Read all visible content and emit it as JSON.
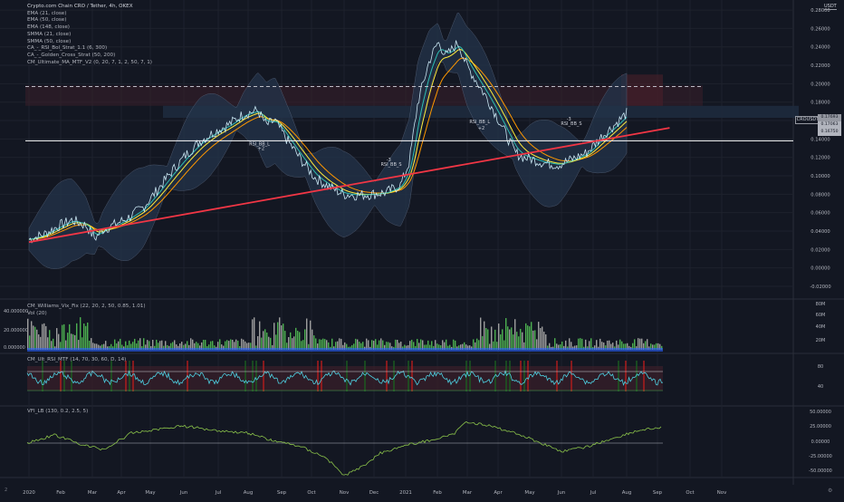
{
  "legend": {
    "title": "Crypto.com Chain CRO / Tether, 4h, OKEX",
    "indicators": [
      "EMA (21, close)",
      "EMA (50, close)",
      "EMA (148, close)",
      "SMMA (21, close)",
      "SMMA (50, close)",
      "CA_-_RSI_Bol_Strat_1.1 (6, 300)",
      "CA_-_Golden_Cross_Strat (50, 200)",
      "CM_Ultimate_MA_MTF_V2 (0, 20, 7, 1, 2, 50, 7, 1)"
    ]
  },
  "corner_label": "USDT",
  "ticker_label": "CROUSDT",
  "price_tags": [
    {
      "value": "0.17693",
      "color": "#9598a1"
    },
    {
      "value": "0.17063",
      "color": "#b2b5be"
    },
    {
      "value": "0.16750",
      "color": "#b2b5be"
    }
  ],
  "corner_number": "2",
  "settings_icon": "gear-icon",
  "colors": {
    "background": "#131722",
    "price": "#c9e6f2",
    "ema_fast": "#2ebfb4",
    "ema_mid": "#ffeb3b",
    "ema_slow": "#ff9800",
    "trendline": "#f23645",
    "bollinger_fill": "#23344a",
    "volume_up": "#4caf50",
    "volume_down": "#9e9e9e",
    "rsi_line": "#4dd0e1",
    "vfi_line": "#8bc34a"
  },
  "chart_data": [
    {
      "type": "line",
      "title": "Crypto.com Chain CRO / Tether, 4h, OKEX",
      "x_labels": [
        "2020",
        "Feb",
        "Mar",
        "Apr",
        "May",
        "Jun",
        "Jul",
        "Aug",
        "Sep",
        "Oct",
        "Nov",
        "Dec",
        "2021",
        "Feb",
        "Mar",
        "Apr",
        "May",
        "Jun",
        "Jul",
        "Aug",
        "Sep",
        "Oct",
        "Nov"
      ],
      "y_ticks": [
        "0.28000",
        "0.26000",
        "0.24000",
        "0.22000",
        "0.20000",
        "0.18000",
        "0.16000",
        "0.14000",
        "0.12000",
        "0.10000",
        "0.08000",
        "0.06000",
        "0.04000",
        "0.02000",
        "0.00000",
        "-0.02000"
      ],
      "ylim": [
        -0.022,
        0.285
      ],
      "series": [
        {
          "points": [
            [
              0,
              0.031
            ],
            [
              0.5,
              0.036
            ],
            [
              1,
              0.045
            ],
            [
              1.5,
              0.052
            ],
            [
              2,
              0.046
            ],
            [
              2.3,
              0.032
            ],
            [
              2.6,
              0.042
            ],
            [
              3,
              0.047
            ],
            [
              3.5,
              0.055
            ],
            [
              4,
              0.066
            ],
            [
              4.5,
              0.085
            ],
            [
              5,
              0.105
            ],
            [
              5.5,
              0.123
            ],
            [
              6,
              0.138
            ],
            [
              6.5,
              0.148
            ],
            [
              7,
              0.156
            ],
            [
              7.5,
              0.167
            ],
            [
              8,
              0.171
            ],
            [
              8.3,
              0.155
            ],
            [
              8.6,
              0.16
            ],
            [
              9,
              0.14
            ],
            [
              9.5,
              0.118
            ],
            [
              10,
              0.098
            ],
            [
              10.5,
              0.088
            ],
            [
              11,
              0.08
            ],
            [
              11.5,
              0.079
            ],
            [
              12,
              0.08
            ],
            [
              12.5,
              0.082
            ],
            [
              13,
              0.09
            ],
            [
              13.3,
              0.115
            ],
            [
              13.6,
              0.18
            ],
            [
              14,
              0.225
            ],
            [
              14.3,
              0.245
            ],
            [
              14.6,
              0.23
            ],
            [
              15,
              0.245
            ],
            [
              15.3,
              0.22
            ],
            [
              15.6,
              0.205
            ],
            [
              16,
              0.185
            ],
            [
              16.3,
              0.168
            ],
            [
              16.6,
              0.15
            ],
            [
              17,
              0.125
            ],
            [
              17.3,
              0.12
            ],
            [
              17.6,
              0.118
            ],
            [
              18,
              0.114
            ],
            [
              18.5,
              0.112
            ],
            [
              19,
              0.118
            ],
            [
              19.5,
              0.125
            ],
            [
              20,
              0.142
            ],
            [
              20.5,
              0.156
            ],
            [
              20.9,
              0.168
            ]
          ]
        }
      ],
      "horizontal_lines": [
        0.197,
        0.138
      ],
      "trendline": {
        "from": [
          0,
          0.028
        ],
        "to": [
          22.4,
          0.152
        ]
      },
      "annotations": [
        {
          "text": "RSI_BB_L",
          "x": 7.7,
          "y": 0.133
        },
        {
          "text": "+2",
          "x": 8.0,
          "y": 0.128
        },
        {
          "text": "-3",
          "x": 12.5,
          "y": 0.116
        },
        {
          "text": "RSI_BB_S",
          "x": 12.3,
          "y": 0.111
        },
        {
          "text": "RSI_BB_L",
          "x": 15.4,
          "y": 0.157
        },
        {
          "text": "+2",
          "x": 15.7,
          "y": 0.15
        },
        {
          "text": "-3",
          "x": 18.8,
          "y": 0.16
        },
        {
          "text": "RSI_BB_S",
          "x": 18.6,
          "y": 0.155
        }
      ]
    },
    {
      "type": "bar",
      "pane_labels": [
        "CM_Williams_Vix_Fix (22, 20, 2, 50, 0.85, 1.01)",
        "Vol (20)"
      ],
      "left_ticks": [
        "40.000000",
        "20.000000",
        "0.000000"
      ],
      "y_ticks": [
        "80M",
        "60M",
        "40M",
        "20M"
      ]
    },
    {
      "type": "line",
      "pane_labels": [
        "CM_Ult_RSI_MTF (14, 70, 30, 60, D, 14)"
      ],
      "y_ticks": [
        "80",
        "40"
      ]
    },
    {
      "type": "line",
      "pane_labels": [
        "VFI_LB (130, 0.2, 2.5, 5)"
      ],
      "y_ticks": [
        "50.00000",
        "25.00000",
        "0.00000",
        "-25.00000",
        "-50.00000"
      ]
    }
  ]
}
